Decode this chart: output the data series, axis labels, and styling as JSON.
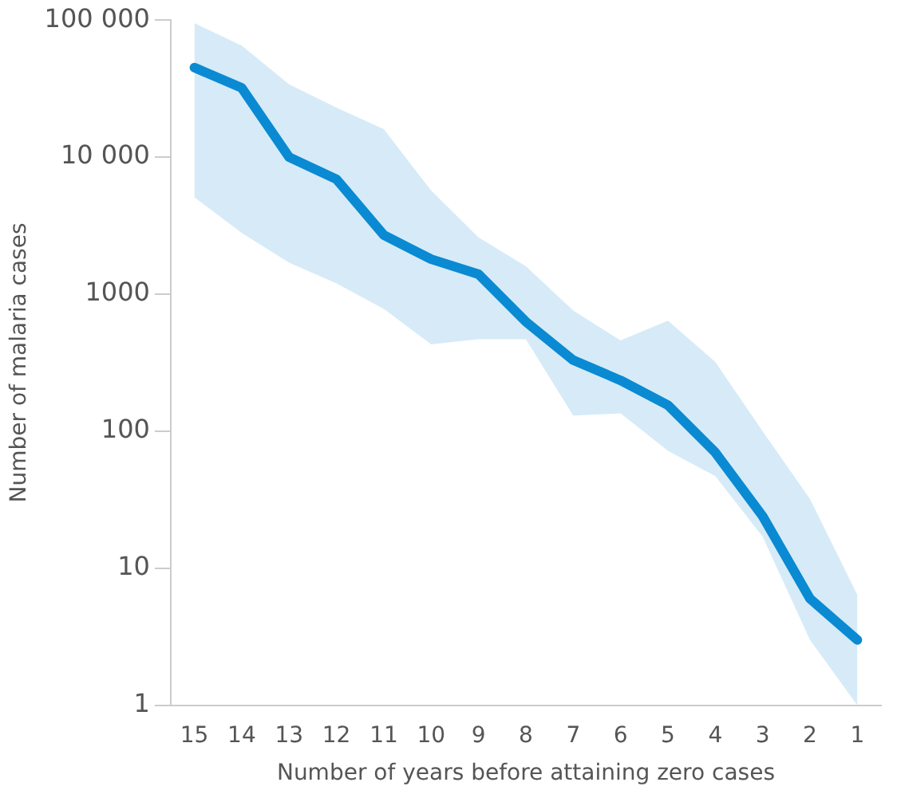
{
  "chart_data": {
    "type": "line",
    "xlabel": "Number of years before attaining zero cases",
    "ylabel": "Number of malaria cases",
    "categories": [
      "15",
      "14",
      "13",
      "12",
      "11",
      "10",
      "9",
      "8",
      "7",
      "6",
      "5",
      "4",
      "3",
      "2",
      "1"
    ],
    "series": [
      {
        "color": "#0a8ad2",
        "values": [
          45000,
          32000,
          10000,
          6900,
          2700,
          1800,
          1400,
          630,
          330,
          235,
          155,
          70,
          24,
          6,
          3
        ],
        "upper": [
          95000,
          65000,
          34000,
          23000,
          16000,
          5700,
          2600,
          1600,
          760,
          460,
          640,
          320,
          100,
          32,
          6.4
        ],
        "lower": [
          5100,
          2800,
          1700,
          1200,
          780,
          430,
          470,
          470,
          130,
          135,
          72,
          47,
          17,
          3,
          1
        ]
      }
    ],
    "log": "y",
    "ylim": [
      1,
      100000
    ],
    "yticks": [
      1,
      10,
      100,
      1000,
      {
        "value": 10000,
        "label": "10 000"
      },
      {
        "value": 100000,
        "label": "100 000"
      }
    ],
    "grid": false,
    "legend": false,
    "marker": "none",
    "line_style": "solid"
  }
}
